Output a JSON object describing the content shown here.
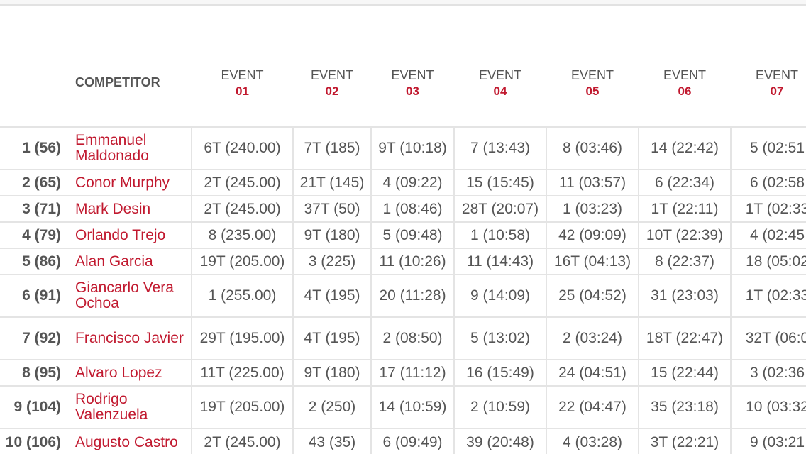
{
  "header": {
    "competitor": "COMPETITOR",
    "events": [
      {
        "label": "EVENT",
        "number": "01"
      },
      {
        "label": "EVENT",
        "number": "02"
      },
      {
        "label": "EVENT",
        "number": "03"
      },
      {
        "label": "EVENT",
        "number": "04"
      },
      {
        "label": "EVENT",
        "number": "05"
      },
      {
        "label": "EVENT",
        "number": "06"
      },
      {
        "label": "EVENT",
        "number": "07"
      }
    ]
  },
  "rows": [
    {
      "rank": "1 (56)",
      "name": "Emmanuel Maldonado",
      "results": [
        "6T (240.00)",
        "7T (185)",
        "9T (10:18)",
        "7 (13:43)",
        "8 (03:46)",
        "14 (22:42)",
        "5 (02:51"
      ]
    },
    {
      "rank": "2 (65)",
      "name": "Conor Murphy",
      "results": [
        "2T (245.00)",
        "21T (145)",
        "4 (09:22)",
        "15 (15:45)",
        "11 (03:57)",
        "6 (22:34)",
        "6 (02:58"
      ]
    },
    {
      "rank": "3 (71)",
      "name": "Mark Desin",
      "results": [
        "2T (245.00)",
        "37T (50)",
        "1 (08:46)",
        "28T (20:07)",
        "1 (03:23)",
        "1T (22:11)",
        "1T (02:33"
      ]
    },
    {
      "rank": "4 (79)",
      "name": "Orlando Trejo",
      "results": [
        "8 (235.00)",
        "9T (180)",
        "5 (09:48)",
        "1 (10:58)",
        "42 (09:09)",
        "10T (22:39)",
        "4 (02:45"
      ]
    },
    {
      "rank": "5 (86)",
      "name": "Alan Garcia",
      "results": [
        "19T (205.00)",
        "3 (225)",
        "11 (10:26)",
        "11 (14:43)",
        "16T (04:13)",
        "8 (22:37)",
        "18 (05:02"
      ]
    },
    {
      "rank": "6 (91)",
      "name": "Giancarlo Vera Ochoa",
      "results": [
        "1 (255.00)",
        "4T (195)",
        "20 (11:28)",
        "9 (14:09)",
        "25 (04:52)",
        "31 (23:03)",
        "1T (02:33"
      ]
    },
    {
      "rank": "7 (92)",
      "name": "Francisco Javier",
      "results": [
        "29T (195.00)",
        "4T (195)",
        "2 (08:50)",
        "5 (13:02)",
        "2 (03:24)",
        "18T (22:47)",
        "32T (06:0"
      ]
    },
    {
      "rank": "8 (95)",
      "name": "Alvaro Lopez",
      "results": [
        "11T (225.00)",
        "9T (180)",
        "17 (11:12)",
        "16 (15:49)",
        "24 (04:51)",
        "15 (22:44)",
        "3 (02:36"
      ]
    },
    {
      "rank": "9 (104)",
      "name": "Rodrigo Valenzuela",
      "results": [
        "19T (205.00)",
        "2 (250)",
        "14 (10:59)",
        "2 (10:59)",
        "22 (04:47)",
        "35 (23:18)",
        "10 (03:32"
      ]
    },
    {
      "rank": "10 (106)",
      "name": "Augusto Castro",
      "results": [
        "2T (245.00)",
        "43 (35)",
        "6 (09:49)",
        "39 (20:48)",
        "4 (03:28)",
        "3T (22:21)",
        "9 (03:21"
      ]
    }
  ]
}
